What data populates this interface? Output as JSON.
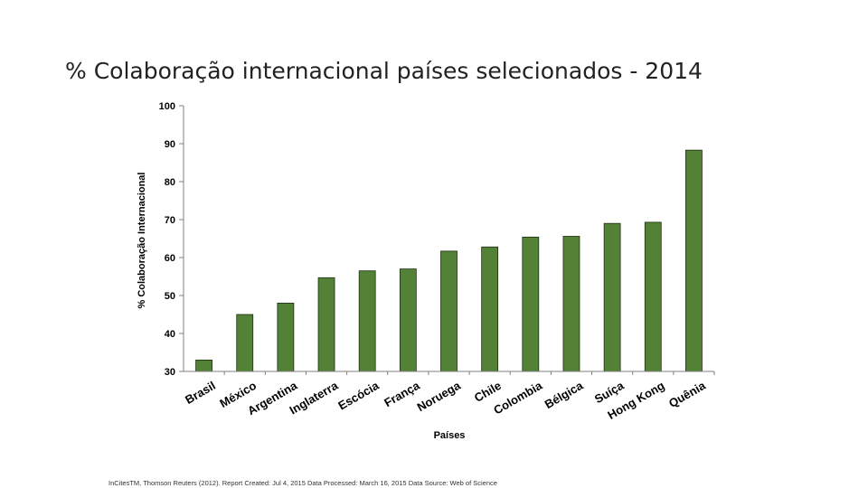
{
  "slide": {
    "title": "% Colaboração internacional países selecionados - 2014",
    "footer": "InCitesTM, Thomson Reuters (2012). Report Created: Jul 4, 2015 Data Processed: March 16, 2015 Data Source: Web of Science"
  },
  "chart_data": {
    "type": "bar",
    "categories": [
      "Brasil",
      "México",
      "Argentina",
      "Inglaterra",
      "Escócia",
      "França",
      "Noruega",
      "Chile",
      "Colombia",
      "Bélgica",
      "Suíça",
      "Hong Kong",
      "Quênia"
    ],
    "values": [
      33.0,
      45.0,
      48.0,
      54.7,
      56.5,
      57.0,
      61.7,
      62.8,
      65.4,
      65.6,
      69.0,
      69.3,
      88.3
    ],
    "title": "% Colaboração internacional países selecionados - 2014",
    "xlabel": "Países",
    "ylabel": "% Colaboração Internacional",
    "ylim": [
      30,
      100
    ],
    "yticks": [
      30,
      40,
      50,
      60,
      70,
      80,
      90,
      100
    ],
    "grid": false,
    "bar_color": "#538135"
  }
}
